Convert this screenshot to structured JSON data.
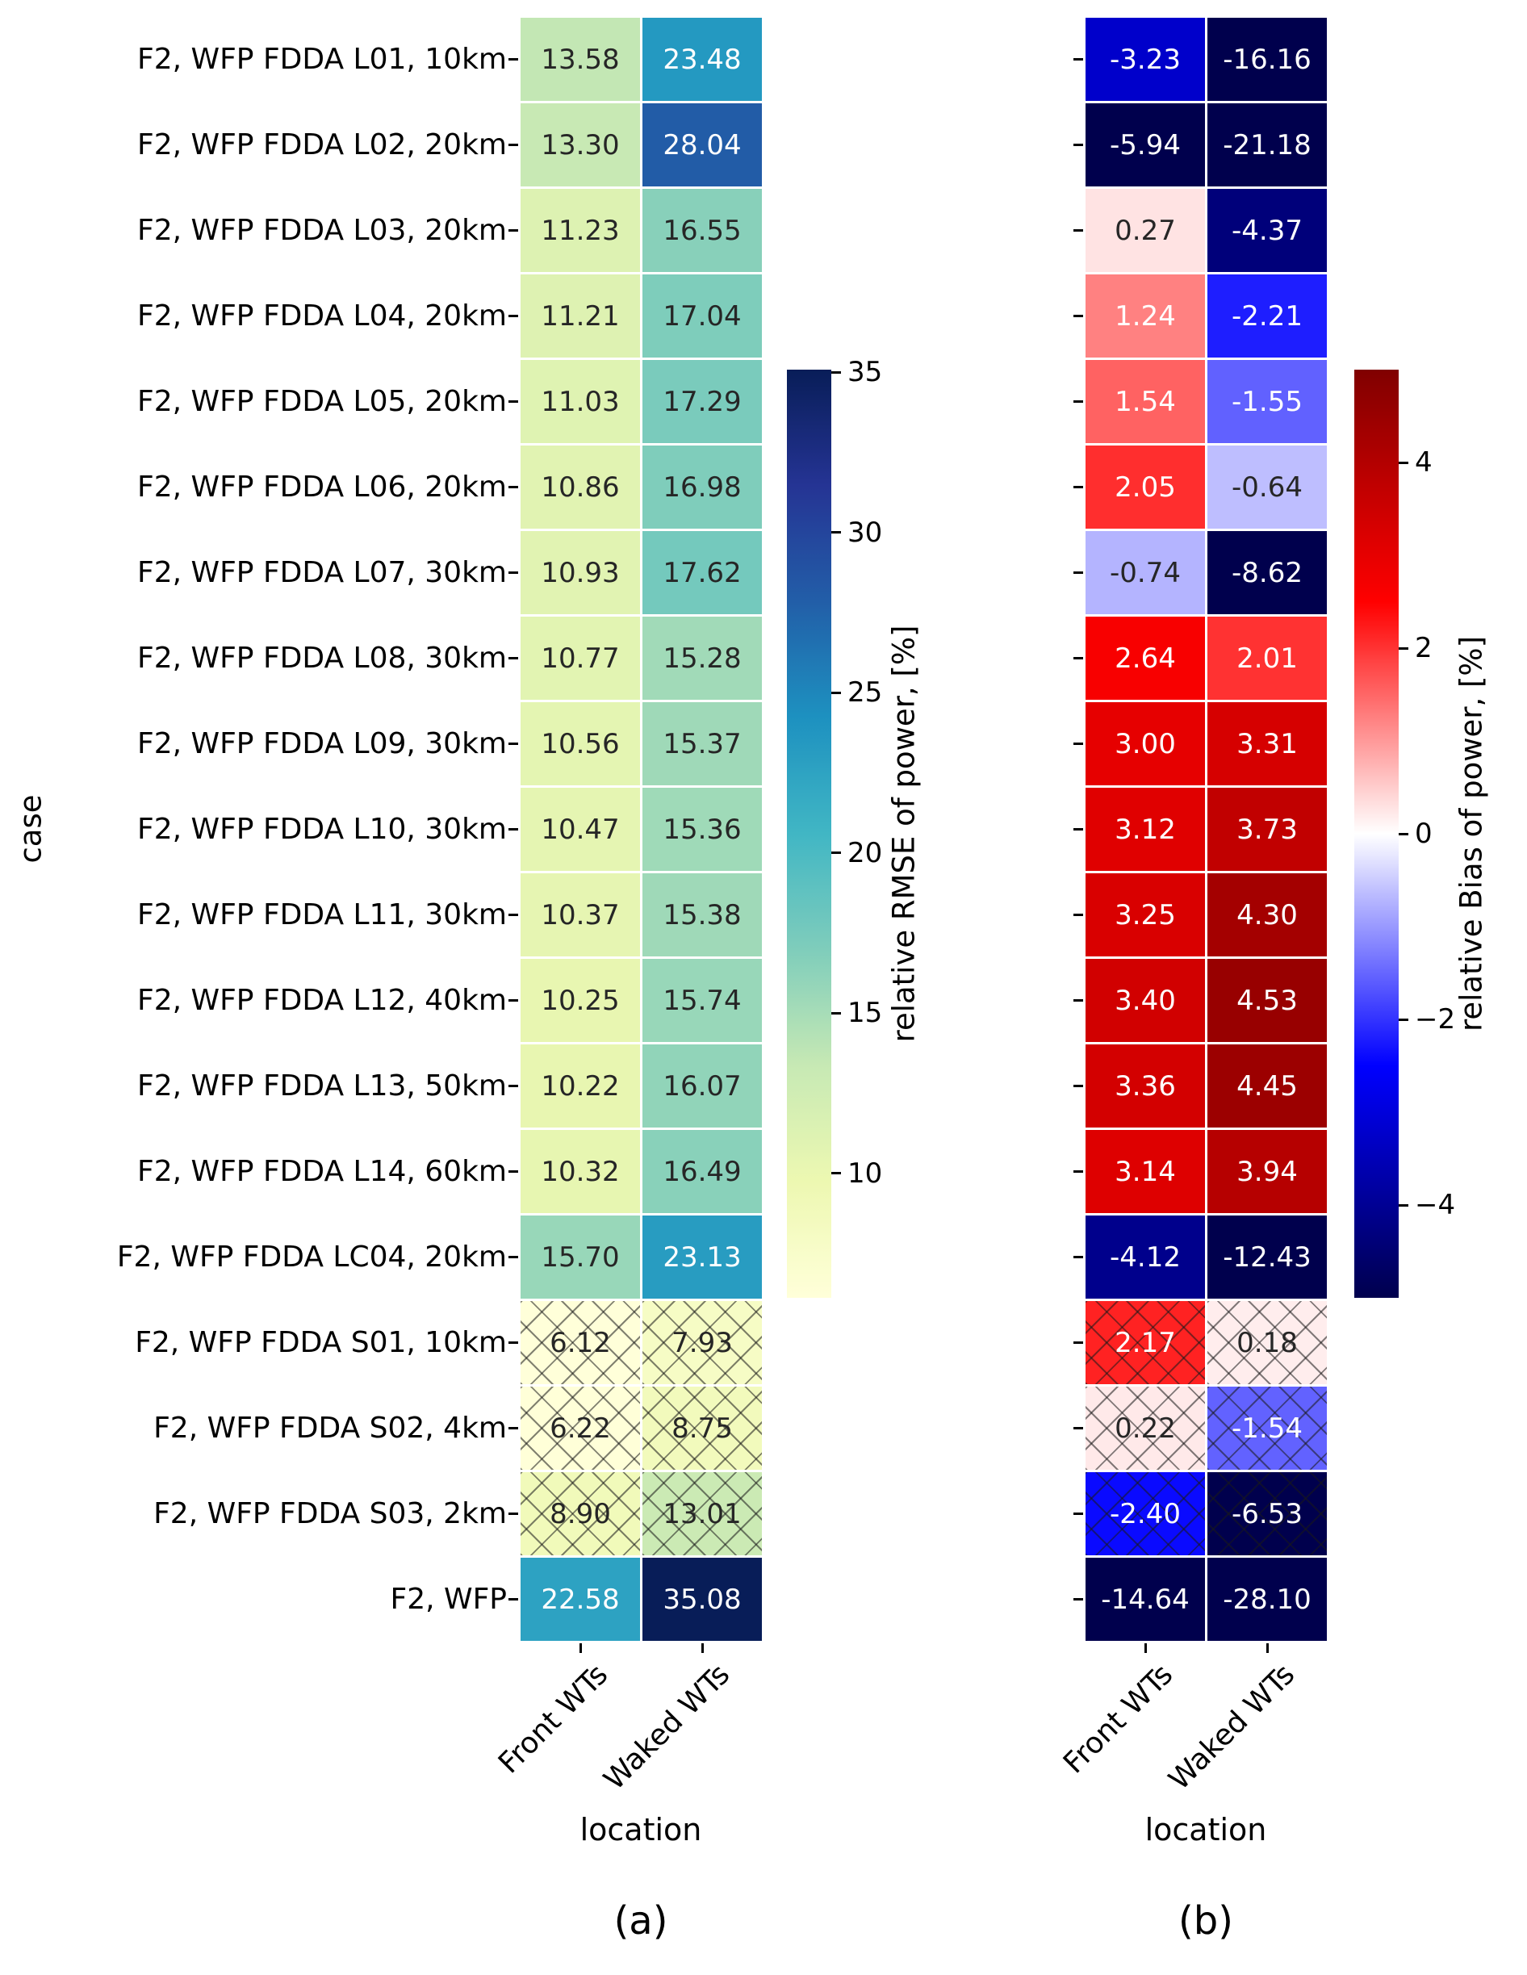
{
  "chart_data": {
    "type": "heatmap",
    "ylabel": "case",
    "xlabel": "location",
    "columns": [
      "Front WTs",
      "Waked WTs"
    ],
    "rows": [
      "F2, WFP FDDA L01, 10km",
      "F2, WFP FDDA L02, 20km",
      "F2, WFP FDDA L03, 20km",
      "F2, WFP FDDA L04, 20km",
      "F2, WFP FDDA L05, 20km",
      "F2, WFP FDDA L06, 20km",
      "F2, WFP FDDA L07, 30km",
      "F2, WFP FDDA L08, 30km",
      "F2, WFP FDDA L09, 30km",
      "F2, WFP FDDA L10, 30km",
      "F2, WFP FDDA L11, 30km",
      "F2, WFP FDDA L12, 40km",
      "F2, WFP FDDA L13, 50km",
      "F2, WFP FDDA L14, 60km",
      "F2, WFP FDDA LC04, 20km",
      "F2, WFP FDDA S01, 10km",
      "F2, WFP FDDA S02, 4km",
      "F2, WFP FDDA S03, 2km",
      "F2, WFP"
    ],
    "hatched_row_indices": [
      15,
      16,
      17
    ],
    "panels": [
      {
        "caption": "(a)",
        "colorbar_label": "relative RMSE of power, [%]",
        "colormap": "YlGnBu",
        "vmin": 6.12,
        "vmax": 35.08,
        "colorbar_ticks": [
          35,
          30,
          25,
          20,
          15,
          10
        ],
        "series": [
          {
            "name": "Front WTs",
            "values": [
              13.58,
              13.3,
              11.23,
              11.21,
              11.03,
              10.86,
              10.93,
              10.77,
              10.56,
              10.47,
              10.37,
              10.25,
              10.22,
              10.32,
              15.7,
              6.12,
              6.22,
              8.9,
              22.58
            ]
          },
          {
            "name": "Waked WTs",
            "values": [
              23.48,
              28.04,
              16.55,
              17.04,
              17.29,
              16.98,
              17.62,
              15.28,
              15.37,
              15.36,
              15.38,
              15.74,
              16.07,
              16.49,
              23.13,
              7.93,
              8.75,
              13.01,
              35.08
            ]
          }
        ]
      },
      {
        "caption": "(b)",
        "colorbar_label": "relative Bias of power, [%]",
        "colormap": "seismic",
        "vmin": -5,
        "vmax": 5,
        "colorbar_ticks": [
          4,
          2,
          0,
          -2,
          -4
        ],
        "series": [
          {
            "name": "Front WTs",
            "values": [
              -3.23,
              -5.94,
              0.27,
              1.24,
              1.54,
              2.05,
              -0.74,
              2.64,
              3.0,
              3.12,
              3.25,
              3.4,
              3.36,
              3.14,
              -4.12,
              2.17,
              0.22,
              -2.4,
              -14.64
            ]
          },
          {
            "name": "Waked WTs",
            "values": [
              -16.16,
              -21.18,
              -4.37,
              -2.21,
              -1.55,
              -0.64,
              -8.62,
              2.01,
              3.31,
              3.73,
              4.3,
              4.53,
              4.45,
              3.94,
              -12.43,
              0.18,
              -1.54,
              -6.53,
              -28.1
            ]
          }
        ]
      }
    ],
    "colormaps": {
      "YlGnBu": [
        {
          "t": 0.0,
          "c": "#ffffd9"
        },
        {
          "t": 0.125,
          "c": "#edf8b1"
        },
        {
          "t": 0.25,
          "c": "#c7e9b4"
        },
        {
          "t": 0.375,
          "c": "#7fcdbb"
        },
        {
          "t": 0.5,
          "c": "#41b6c4"
        },
        {
          "t": 0.625,
          "c": "#1d91c0"
        },
        {
          "t": 0.75,
          "c": "#225ea8"
        },
        {
          "t": 0.875,
          "c": "#253494"
        },
        {
          "t": 1.0,
          "c": "#081d58"
        }
      ],
      "seismic": [
        {
          "t": 0.0,
          "c": "#00004d"
        },
        {
          "t": 0.25,
          "c": "#0000ff"
        },
        {
          "t": 0.5,
          "c": "#ffffff"
        },
        {
          "t": 0.75,
          "c": "#ff0000"
        },
        {
          "t": 1.0,
          "c": "#800000"
        }
      ]
    },
    "annotation_text_colors": {
      "dark": "#262626",
      "light": "#ffffff"
    }
  }
}
